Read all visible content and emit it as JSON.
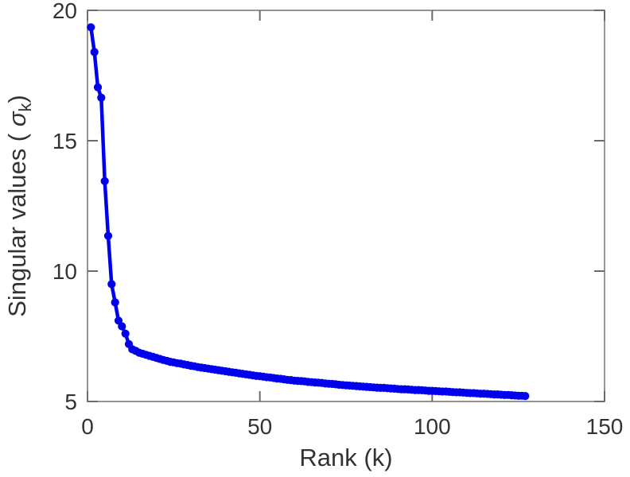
{
  "figure": {
    "background": "#ffffff"
  },
  "chart_data": {
    "type": "line",
    "title": "",
    "xlabel": "Rank (k)",
    "ylabel": "Singular values (  σ_k)",
    "ylabel_parts": {
      "prefix": "Singular values (  ",
      "symbol": "σ",
      "subscript": "k",
      "suffix": ")"
    },
    "xlim": [
      0,
      150
    ],
    "ylim": [
      5,
      20
    ],
    "x_ticks": [
      0,
      50,
      100,
      150
    ],
    "y_ticks": [
      5,
      10,
      15,
      20
    ],
    "grid": false,
    "legend": null,
    "marker": "filled-circle",
    "n_points": 127,
    "x_rank_range": [
      1,
      127
    ],
    "series": [
      {
        "name": "singular-values",
        "y": [
          19.35,
          18.4,
          17.05,
          16.65,
          13.45,
          11.35,
          9.5,
          8.8,
          8.1,
          7.88,
          7.6,
          7.2,
          7.0,
          6.94,
          6.87,
          6.83,
          6.79,
          6.75,
          6.71,
          6.67,
          6.63,
          6.59,
          6.56,
          6.52,
          6.5,
          6.47,
          6.45,
          6.42,
          6.4,
          6.37,
          6.35,
          6.32,
          6.3,
          6.28,
          6.26,
          6.24,
          6.22,
          6.2,
          6.18,
          6.16,
          6.14,
          6.12,
          6.1,
          6.08,
          6.06,
          6.04,
          6.02,
          6.0,
          5.98,
          5.97,
          5.95,
          5.93,
          5.92,
          5.9,
          5.88,
          5.87,
          5.85,
          5.83,
          5.82,
          5.8,
          5.79,
          5.78,
          5.77,
          5.75,
          5.74,
          5.73,
          5.72,
          5.71,
          5.69,
          5.68,
          5.67,
          5.66,
          5.64,
          5.63,
          5.62,
          5.61,
          5.6,
          5.59,
          5.58,
          5.57,
          5.56,
          5.55,
          5.54,
          5.53,
          5.52,
          5.52,
          5.51,
          5.5,
          5.49,
          5.48,
          5.47,
          5.47,
          5.46,
          5.45,
          5.44,
          5.44,
          5.43,
          5.42,
          5.41,
          5.41,
          5.4,
          5.39,
          5.38,
          5.38,
          5.37,
          5.36,
          5.35,
          5.35,
          5.34,
          5.33,
          5.32,
          5.32,
          5.31,
          5.3,
          5.3,
          5.29,
          5.28,
          5.27,
          5.27,
          5.26,
          5.25,
          5.25,
          5.24,
          5.23,
          5.22,
          5.22,
          5.21
        ]
      }
    ],
    "colors": {
      "line": "#0000ee",
      "marker": "#0000ee",
      "axis": "#7a7a7a",
      "tick": "#6b6b6b",
      "text": "#333333"
    }
  }
}
